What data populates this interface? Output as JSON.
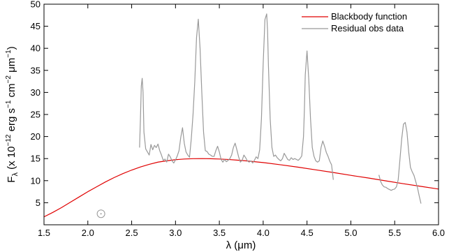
{
  "chart_data": {
    "type": "line",
    "xlim": [
      1.5,
      6.0
    ],
    "ylim": [
      0,
      50
    ],
    "xticks": [
      1.5,
      2.0,
      2.5,
      3.0,
      3.5,
      4.0,
      4.5,
      5.0,
      5.5,
      6.0
    ],
    "xtick_labels": [
      "1.5",
      "2.0",
      "2.5",
      "3.0",
      "3.5",
      "4.0",
      "4.5",
      "5.0",
      "5.5",
      "6.0"
    ],
    "yticks": [
      5,
      10,
      15,
      20,
      25,
      30,
      35,
      40,
      45,
      50
    ],
    "ytick_labels": [
      "5",
      "10",
      "15",
      "20",
      "25",
      "30",
      "35",
      "40",
      "45",
      "50"
    ],
    "xlabel": "λ (μm)",
    "ylabel_parts": {
      "F": "F",
      "lambda_sub": "λ",
      "open": " (x 10",
      "exp1": "−12",
      "mid1": " erg s",
      "exp2": "−1",
      "mid2": " cm",
      "exp3": "−2",
      "mid3": " μm",
      "exp4": "−1",
      "close": ")"
    },
    "legend_position": "top-right",
    "series": [
      {
        "name": "Blackbody function",
        "color": "#e00000",
        "x": [
          1.5,
          1.6,
          1.7,
          1.8,
          1.9,
          2.0,
          2.1,
          2.2,
          2.3,
          2.4,
          2.5,
          2.6,
          2.7,
          2.8,
          2.9,
          3.0,
          3.1,
          3.2,
          3.3,
          3.4,
          3.5,
          3.6,
          3.7,
          3.8,
          3.9,
          4.0,
          4.2,
          4.4,
          4.6,
          4.8,
          5.0,
          5.2,
          5.4,
          5.6,
          5.8,
          6.0
        ],
        "y": [
          1.8,
          2.8,
          3.9,
          5.1,
          6.3,
          7.5,
          8.6,
          9.7,
          10.7,
          11.6,
          12.4,
          13.1,
          13.7,
          14.2,
          14.5,
          14.75,
          14.9,
          14.98,
          15.0,
          14.97,
          14.9,
          14.8,
          14.65,
          14.5,
          14.3,
          14.1,
          13.6,
          13.05,
          12.45,
          11.85,
          11.2,
          10.6,
          9.95,
          9.3,
          8.7,
          8.1
        ]
      },
      {
        "name": "Residual obs data",
        "color": "#999999",
        "segments": [
          {
            "x": [
              2.59,
              2.6,
              2.61,
              2.62,
              2.63,
              2.64,
              2.66,
              2.68,
              2.7,
              2.72,
              2.74,
              2.76,
              2.78,
              2.8,
              2.82,
              2.84,
              2.86,
              2.88,
              2.9,
              2.92,
              2.94,
              2.96,
              2.98,
              3.0,
              3.02,
              3.04,
              3.06,
              3.08,
              3.1,
              3.12,
              3.14,
              3.16,
              3.18,
              3.2,
              3.22,
              3.24,
              3.26,
              3.28,
              3.3,
              3.32,
              3.34,
              3.36,
              3.38,
              3.4,
              3.42,
              3.44,
              3.46,
              3.48,
              3.5,
              3.52,
              3.54,
              3.56,
              3.58,
              3.6,
              3.62,
              3.64,
              3.66,
              3.68,
              3.7,
              3.72,
              3.74,
              3.76,
              3.78,
              3.8,
              3.82,
              3.84,
              3.86,
              3.88,
              3.9,
              3.92,
              3.94,
              3.96,
              3.98,
              4.0,
              4.02,
              4.04,
              4.05,
              4.06,
              4.08,
              4.1,
              4.12,
              4.14,
              4.16,
              4.18,
              4.2,
              4.22,
              4.24,
              4.26,
              4.28,
              4.3,
              4.32,
              4.34,
              4.36,
              4.38,
              4.4,
              4.42,
              4.44,
              4.46,
              4.47,
              4.48,
              4.5,
              4.52,
              4.54,
              4.56,
              4.58,
              4.6,
              4.62,
              4.64,
              4.66,
              4.68,
              4.7,
              4.72,
              4.74,
              4.76,
              4.78,
              4.8
            ],
            "y": [
              17.5,
              24.0,
              31.5,
              33.2,
              30.0,
              21.0,
              17.2,
              16.5,
              15.8,
              18.2,
              17.0,
              18.0,
              17.5,
              18.3,
              16.8,
              15.8,
              14.6,
              14.9,
              14.2,
              16.0,
              15.4,
              14.5,
              14.0,
              14.7,
              15.6,
              16.8,
              19.8,
              22.0,
              18.5,
              16.5,
              15.8,
              15.3,
              19.5,
              25.0,
              32.5,
              42.5,
              46.6,
              40.0,
              30.0,
              21.0,
              16.8,
              16.6,
              16.0,
              15.8,
              15.5,
              15.5,
              16.8,
              17.8,
              16.5,
              14.8,
              14.2,
              14.8,
              14.3,
              14.6,
              15.0,
              15.8,
              17.5,
              18.5,
              17.0,
              15.4,
              14.2,
              14.6,
              15.8,
              15.2,
              14.5,
              14.2,
              14.5,
              14.0,
              14.6,
              15.4,
              15.0,
              17.0,
              24.0,
              36.5,
              46.5,
              47.8,
              44.0,
              36.0,
              24.0,
              17.5,
              15.5,
              15.8,
              15.2,
              14.8,
              14.5,
              15.0,
              16.2,
              15.5,
              14.8,
              14.6,
              15.2,
              14.8,
              15.0,
              14.8,
              14.6,
              15.0,
              15.6,
              20.0,
              26.0,
              34.0,
              39.4,
              33.0,
              24.0,
              17.5,
              15.5,
              14.5,
              14.2,
              14.5,
              17.5,
              19.0,
              17.8,
              16.4,
              15.5,
              14.4,
              13.6,
              10.2
            ]
          },
          {
            "x": [
              5.32,
              5.34,
              5.36,
              5.38,
              5.4,
              5.42,
              5.44,
              5.46,
              5.48,
              5.5,
              5.52,
              5.54,
              5.56,
              5.58,
              5.6,
              5.62,
              5.64,
              5.66,
              5.68,
              5.7,
              5.72,
              5.74,
              5.76,
              5.78,
              5.8
            ],
            "y": [
              11.3,
              9.8,
              9.0,
              8.6,
              8.5,
              8.2,
              8.0,
              7.8,
              8.0,
              8.1,
              8.6,
              10.2,
              14.8,
              19.5,
              22.8,
              23.2,
              21.0,
              16.5,
              13.0,
              12.0,
              11.2,
              9.8,
              8.4,
              6.5,
              4.8
            ]
          }
        ]
      }
    ],
    "annotations": [
      {
        "type": "circle-marker",
        "x": 2.15,
        "y": 2.5,
        "color": "#999999"
      }
    ]
  }
}
